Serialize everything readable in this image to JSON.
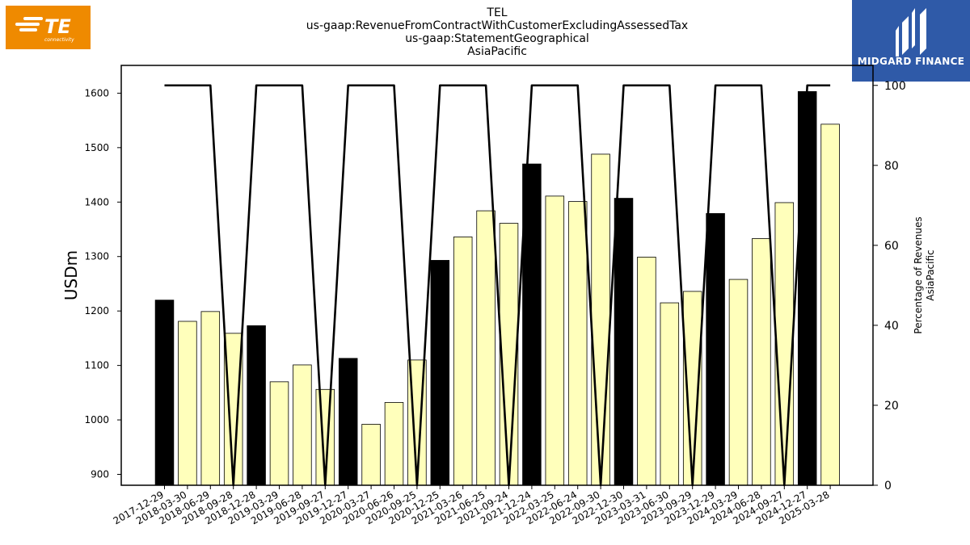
{
  "title_lines": [
    "TEL",
    "us-gaap:RevenueFromContractWithCustomerExcludingAssessedTax",
    "us-gaap:StatementGeographical",
    "AsiaPacific"
  ],
  "logos": {
    "left": {
      "text": "TE",
      "subtext": "connectivity",
      "color": "#ef8a00"
    },
    "right": {
      "text": "MIDGARD FINANCE",
      "color": "#2f5aa8"
    }
  },
  "chart_data": {
    "type": "bar",
    "categories": [
      "2017-12-29",
      "2018-03-30",
      "2018-06-29",
      "2018-09-28",
      "2018-12-28",
      "2019-03-29",
      "2019-06-28",
      "2019-09-27",
      "2019-12-27",
      "2020-03-27",
      "2020-06-26",
      "2020-09-25",
      "2020-12-25",
      "2021-03-26",
      "2021-06-25",
      "2021-09-24",
      "2021-12-24",
      "2022-03-25",
      "2022-06-24",
      "2022-09-30",
      "2022-12-30",
      "2023-03-31",
      "2023-06-30",
      "2023-09-29",
      "2023-12-29",
      "2024-03-29",
      "2024-06-28",
      "2024-09-27",
      "2024-12-27",
      "2025-03-28"
    ],
    "series": [
      {
        "type": "bar",
        "axis": "left",
        "values": [
          1220,
          1181,
          1199,
          1159,
          1173,
          1070,
          1101,
          1056,
          1113,
          992,
          1032,
          1110,
          1293,
          1336,
          1384,
          1361,
          1470,
          1411,
          1401,
          1488,
          1407,
          1299,
          1215,
          1236,
          1379,
          1258,
          1333,
          1399,
          1603,
          1543
        ],
        "highlight_categories": [
          "2017-12-29",
          "2018-12-28",
          "2019-12-27",
          "2020-12-25",
          "2021-12-24",
          "2022-12-30",
          "2023-12-29",
          "2024-12-27"
        ],
        "highlight_color": "#000000",
        "color": "#ffffbb"
      },
      {
        "type": "line",
        "axis": "right",
        "values": [
          100,
          100,
          100,
          0,
          100,
          100,
          100,
          0,
          100,
          100,
          100,
          0,
          100,
          100,
          100,
          0,
          100,
          100,
          100,
          0,
          100,
          100,
          100,
          0,
          100,
          100,
          100,
          0,
          100,
          100
        ],
        "color": "#000000"
      }
    ],
    "ylabel": "USDm",
    "ylabel_right": [
      "Percentage of Revenues",
      "AsiaPacific"
    ],
    "ylim": [
      880,
      1651
    ],
    "y_ticks": [
      900,
      1000,
      1100,
      1200,
      1300,
      1400,
      1500,
      1600
    ],
    "ylim_right": [
      0,
      105
    ],
    "y_ticks_right": [
      0,
      20,
      40,
      60,
      80,
      100
    ],
    "grid": false,
    "legend": "none"
  }
}
